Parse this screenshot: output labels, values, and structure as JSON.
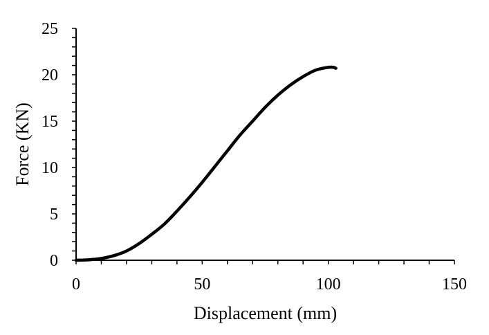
{
  "chart_data": {
    "type": "line",
    "title": "",
    "xlabel": "Displacement (mm)",
    "ylabel": "Force (KN)",
    "xlim": [
      0,
      150
    ],
    "ylim": [
      0,
      25
    ],
    "x_ticks": [
      "0",
      "50",
      "100",
      "150"
    ],
    "y_ticks": [
      "0",
      "5",
      "10",
      "15",
      "20",
      "25"
    ],
    "x_minor_step": 10,
    "y_minor_step": 1,
    "grid": false,
    "legend": "none",
    "line_color": "#000000",
    "series": [
      {
        "x": [
          0,
          5,
          10,
          15,
          20,
          25,
          30,
          35,
          40,
          45,
          50,
          55,
          60,
          65,
          70,
          75,
          80,
          85,
          90,
          95,
          100,
          102,
          103
        ],
        "y": [
          0,
          0.05,
          0.2,
          0.5,
          1.0,
          1.8,
          2.8,
          3.9,
          5.3,
          6.8,
          8.4,
          10.1,
          11.8,
          13.5,
          15.0,
          16.5,
          17.8,
          18.9,
          19.8,
          20.5,
          20.8,
          20.8,
          20.7
        ]
      }
    ]
  }
}
